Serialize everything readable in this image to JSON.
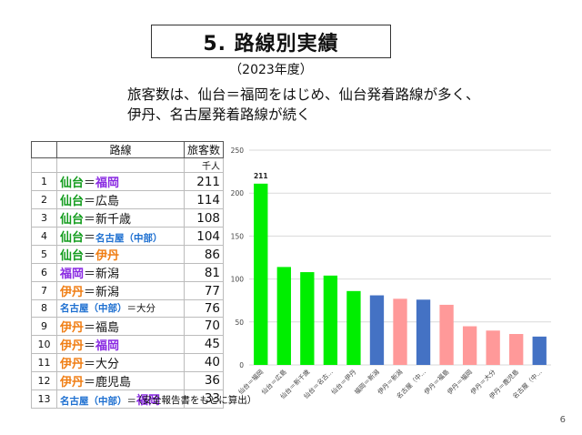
{
  "title": "5. 路線別実績",
  "year": "（2023年度）",
  "headline": [
    "旅客数は、仙台＝福岡をはじめ、仙台発着路線が多く、",
    "伊丹、名古屋発着路線が続く"
  ],
  "table": {
    "header_route": "路線",
    "header_value": "旅客数",
    "unit": "千人",
    "rows": [
      {
        "num": "1",
        "from": "仙台",
        "sep": "＝",
        "to": "福岡",
        "from_color": "green",
        "to_color": "purple",
        "value": "211"
      },
      {
        "num": "2",
        "from": "仙台",
        "sep": "＝",
        "to": "広島",
        "from_color": "green",
        "to_color": "plain",
        "value": "114"
      },
      {
        "num": "3",
        "from": "仙台",
        "sep": "＝",
        "to": "新千歳",
        "from_color": "green",
        "to_color": "plain",
        "value": "108"
      },
      {
        "num": "4",
        "from": "仙台",
        "sep": "＝",
        "to": "名古屋（中部）",
        "from_color": "green",
        "to_color": "blue-sm",
        "value": "104"
      },
      {
        "num": "5",
        "from": "仙台",
        "sep": "＝",
        "to": "伊丹",
        "from_color": "green",
        "to_color": "orange",
        "value": "86"
      },
      {
        "num": "6",
        "from": "福岡",
        "sep": "＝",
        "to": "新潟",
        "from_color": "purple",
        "to_color": "plain",
        "value": "81"
      },
      {
        "num": "7",
        "from": "伊丹",
        "sep": "＝",
        "to": "新潟",
        "from_color": "orange",
        "to_color": "plain",
        "value": "77"
      },
      {
        "num": "8",
        "from": "名古屋（中部）",
        "sep": "＝",
        "to": "大分",
        "from_color": "blue-sm",
        "to_color": "plain-sm",
        "value": "76"
      },
      {
        "num": "9",
        "from": "伊丹",
        "sep": "＝",
        "to": "福島",
        "from_color": "orange",
        "to_color": "plain",
        "value": "70"
      },
      {
        "num": "10",
        "from": "伊丹",
        "sep": "＝",
        "to": "福岡",
        "from_color": "orange",
        "to_color": "purple",
        "value": "45"
      },
      {
        "num": "11",
        "from": "伊丹",
        "sep": "＝",
        "to": "大分",
        "from_color": "orange",
        "to_color": "plain",
        "value": "40"
      },
      {
        "num": "12",
        "from": "伊丹",
        "sep": "＝",
        "to": "鹿児島",
        "from_color": "orange",
        "to_color": "plain",
        "value": "36"
      },
      {
        "num": "13",
        "from": "名古屋（中部）",
        "sep": "＝",
        "to": "福岡",
        "from_color": "blue-sm",
        "to_color": "purple",
        "value": "33"
      }
    ]
  },
  "colors": {
    "green": "#00ee00",
    "blue": "#4472c4",
    "pink": "#ff9999",
    "grid": "#d9d9d9"
  },
  "chart_data": {
    "type": "bar",
    "categories": [
      "仙台＝福岡",
      "仙台＝広島",
      "仙台＝新千歳",
      "仙台＝名古...",
      "仙台＝伊丹",
      "福岡＝新潟",
      "伊丹＝新潟",
      "名古屋（中...",
      "伊丹＝福島",
      "伊丹＝福岡",
      "伊丹＝大分",
      "伊丹＝鹿児島",
      "名古屋（中..."
    ],
    "values": [
      211,
      114,
      108,
      104,
      86,
      81,
      77,
      76,
      70,
      45,
      40,
      36,
      33
    ],
    "bar_colors": [
      "green",
      "green",
      "green",
      "green",
      "green",
      "blue",
      "pink",
      "blue",
      "pink",
      "pink",
      "pink",
      "pink",
      "blue"
    ],
    "data_labels": [
      {
        "index": 0,
        "text": "211"
      }
    ],
    "yticks": [
      "0",
      "50",
      "100",
      "150",
      "200",
      "250"
    ],
    "ylim": [
      0,
      250
    ],
    "grid": true,
    "legend": "none"
  },
  "note": "（安全報告書をもとに算出）",
  "page_number": "6"
}
